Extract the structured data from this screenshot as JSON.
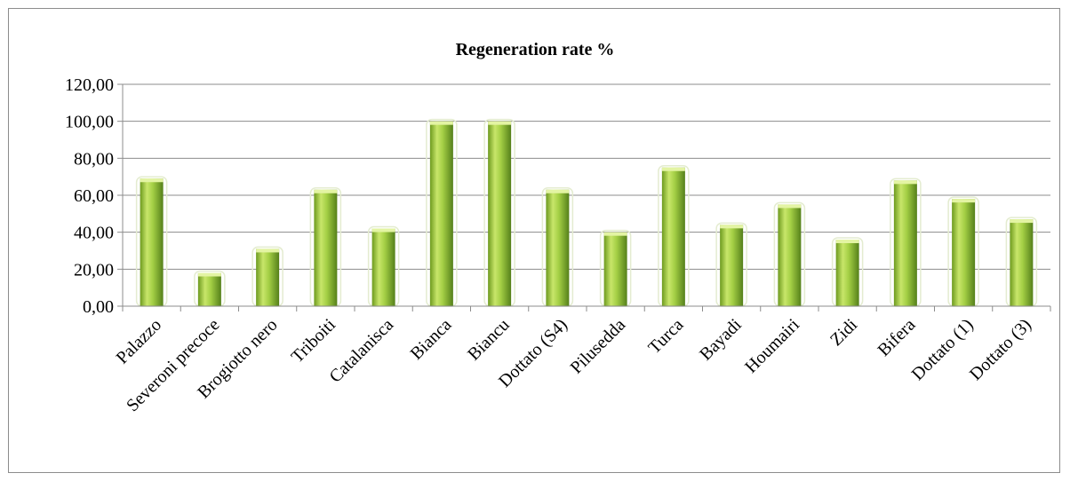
{
  "chart_data": {
    "type": "bar",
    "title": "Regeneration rate %",
    "xlabel": "",
    "ylabel": "",
    "ylim": [
      0,
      120
    ],
    "yticks": [
      "0,00",
      "20,00",
      "40,00",
      "60,00",
      "80,00",
      "100,00",
      "120,00"
    ],
    "grid": true,
    "legend": "none",
    "categories": [
      "Palazzo",
      "Severoni precoce",
      "Brogiotto nero",
      "Triboiti",
      "Catalanisca",
      "Bianca",
      "Biancu",
      "Dottato (S4)",
      "Pilusedda",
      "Turca",
      "Bayadi",
      "Houmairi",
      "Zidi",
      "Bifera",
      "Dottato (1)",
      "Dottato (3)"
    ],
    "values": [
      69,
      18,
      31,
      63,
      42,
      100,
      100,
      63,
      40,
      75,
      44,
      55,
      36,
      68,
      58,
      47
    ],
    "colors": {
      "bar_light": "#d6ee7a",
      "bar_mid": "#9ac43e",
      "bar_dark": "#5f8a19",
      "bar_cap": "#e3f4a3",
      "grid": "#8c8c8c",
      "axis": "#8c8c8c"
    }
  }
}
